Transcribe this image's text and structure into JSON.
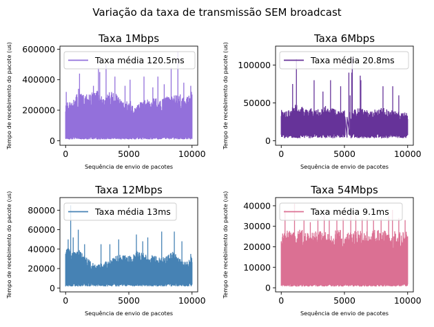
{
  "figure": {
    "title": "Variação da taxa de transmissão SEM broadcast"
  },
  "chart_data": [
    {
      "type": "line",
      "title": "Taxa 1Mbps",
      "xlabel": "Sequência de envio de pacotes",
      "ylabel": "Tempo de recebimento do pacote (us)",
      "xlim": [
        -450,
        10450
      ],
      "ylim": [
        -30000,
        620000
      ],
      "xticks": [
        0,
        5000,
        10000
      ],
      "yticks": [
        0,
        200000,
        400000,
        600000
      ],
      "color": "#9370DB",
      "legend": {
        "label": "Taxa média 120.5ms",
        "position": "upper-left"
      },
      "n_points": 10000,
      "baseline": 20000,
      "band": [
        [
          0,
          230000
        ],
        [
          500,
          230000
        ],
        [
          1000,
          290000
        ],
        [
          1500,
          270000
        ],
        [
          2000,
          290000
        ],
        [
          2500,
          300000
        ],
        [
          3000,
          250000
        ],
        [
          3500,
          300000
        ],
        [
          4000,
          280000
        ],
        [
          4500,
          230000
        ],
        [
          5000,
          250000
        ],
        [
          5500,
          200000
        ],
        [
          6000,
          240000
        ],
        [
          6500,
          250000
        ],
        [
          7000,
          260000
        ],
        [
          7500,
          240000
        ],
        [
          8000,
          270000
        ],
        [
          8500,
          270000
        ],
        [
          9000,
          280000
        ],
        [
          9500,
          250000
        ],
        [
          10000,
          300000
        ]
      ],
      "spikes": [
        [
          50,
          320000
        ],
        [
          1020,
          340000
        ],
        [
          1100,
          440000
        ],
        [
          1400,
          300000
        ],
        [
          2200,
          360000
        ],
        [
          2600,
          480000
        ],
        [
          2700,
          450000
        ],
        [
          3200,
          500000
        ],
        [
          3900,
          420000
        ],
        [
          4700,
          360000
        ],
        [
          5100,
          400000
        ],
        [
          6200,
          420000
        ],
        [
          6900,
          350000
        ],
        [
          7300,
          420000
        ],
        [
          7800,
          370000
        ],
        [
          8350,
          480000
        ],
        [
          8880,
          585000
        ],
        [
          9350,
          380000
        ],
        [
          9900,
          360000
        ]
      ]
    },
    {
      "type": "line",
      "title": "Taxa 6Mbps",
      "xlabel": "Sequência de envio de pacotes",
      "ylabel": "Tempo de recebimento do pacote (us)",
      "xlim": [
        -450,
        10450
      ],
      "ylim": [
        -6000,
        125000
      ],
      "xticks": [
        0,
        5000,
        10000
      ],
      "yticks": [
        0,
        50000,
        100000
      ],
      "color": "#663399",
      "legend": {
        "label": "Taxa média 20.8ms",
        "position": "upper-left"
      },
      "n_points": 10000,
      "baseline": 8000,
      "band": [
        [
          0,
          38000
        ],
        [
          500,
          35000
        ],
        [
          1000,
          45000
        ],
        [
          1500,
          40000
        ],
        [
          2000,
          42000
        ],
        [
          2500,
          40000
        ],
        [
          3000,
          38000
        ],
        [
          3500,
          42000
        ],
        [
          4000,
          40000
        ],
        [
          4500,
          36000
        ],
        [
          5000,
          38000
        ],
        [
          5500,
          34000
        ],
        [
          6000,
          40000
        ],
        [
          6500,
          38000
        ],
        [
          7000,
          36000
        ],
        [
          7500,
          38000
        ],
        [
          8000,
          40000
        ],
        [
          8500,
          38000
        ],
        [
          9000,
          36000
        ],
        [
          9500,
          34000
        ],
        [
          10000,
          36000
        ]
      ],
      "spikes": [
        [
          900,
          75000
        ],
        [
          1200,
          108000
        ],
        [
          2600,
          80000
        ],
        [
          3300,
          65000
        ],
        [
          3900,
          80000
        ],
        [
          4700,
          72000
        ],
        [
          5350,
          90000
        ],
        [
          5450,
          60000
        ],
        [
          5580,
          90000
        ],
        [
          5620,
          110000
        ],
        [
          6250,
          86000
        ],
        [
          6300,
          80000
        ],
        [
          8050,
          72000
        ],
        [
          8820,
          72000
        ],
        [
          9300,
          60000
        ]
      ],
      "gaps": [
        5050,
        5500
      ]
    },
    {
      "type": "line",
      "title": "Taxa 12Mbps",
      "xlabel": "Sequência de envio de pacotes",
      "ylabel": "Tempo de recebimento do pacote (us)",
      "xlim": [
        -450,
        10450
      ],
      "ylim": [
        -4000,
        93000
      ],
      "xticks": [
        0,
        5000,
        10000
      ],
      "yticks": [
        0,
        20000,
        40000,
        60000,
        80000
      ],
      "color": "#4682B4",
      "legend": {
        "label": "Taxa média 13ms",
        "position": "upper-left"
      },
      "n_points": 10000,
      "baseline": 4000,
      "band": [
        [
          0,
          40000
        ],
        [
          500,
          35000
        ],
        [
          1000,
          38000
        ],
        [
          1500,
          30000
        ],
        [
          2000,
          25000
        ],
        [
          2500,
          22000
        ],
        [
          3000,
          24000
        ],
        [
          3500,
          28000
        ],
        [
          4000,
          30000
        ],
        [
          4500,
          32000
        ],
        [
          5000,
          30000
        ],
        [
          5500,
          35000
        ],
        [
          6000,
          36000
        ],
        [
          6500,
          30000
        ],
        [
          7000,
          32000
        ],
        [
          7500,
          28000
        ],
        [
          8000,
          30000
        ],
        [
          8500,
          35000
        ],
        [
          9000,
          28000
        ],
        [
          9500,
          25000
        ],
        [
          10000,
          30000
        ]
      ],
      "spikes": [
        [
          200,
          50000
        ],
        [
          400,
          85000
        ],
        [
          600,
          52000
        ],
        [
          1000,
          60000
        ],
        [
          1500,
          45000
        ],
        [
          2800,
          45000
        ],
        [
          3500,
          45000
        ],
        [
          4200,
          50000
        ],
        [
          5600,
          55000
        ],
        [
          6100,
          48000
        ],
        [
          6500,
          52000
        ],
        [
          7600,
          58000
        ],
        [
          8600,
          58000
        ],
        [
          9200,
          48000
        ],
        [
          9900,
          35000
        ]
      ]
    },
    {
      "type": "line",
      "title": "Taxa 54Mbps",
      "xlabel": "Sequência de envio de pacotes",
      "ylabel": "Tempo de recebimento do pacote (us)",
      "xlim": [
        -450,
        10450
      ],
      "ylim": [
        -2000,
        44000
      ],
      "xticks": [
        0,
        5000,
        10000
      ],
      "yticks": [
        0,
        10000,
        20000,
        30000,
        40000
      ],
      "color": "#DB7093",
      "legend": {
        "label": "Taxa média 9.1ms",
        "position": "upper-left"
      },
      "n_points": 10000,
      "baseline": 1500,
      "band": [
        [
          0,
          25000
        ],
        [
          500,
          26000
        ],
        [
          1000,
          25000
        ],
        [
          1500,
          26000
        ],
        [
          2000,
          25000
        ],
        [
          2500,
          25000
        ],
        [
          3000,
          26000
        ],
        [
          3500,
          25000
        ],
        [
          4000,
          25000
        ],
        [
          4500,
          26000
        ],
        [
          5000,
          25000
        ],
        [
          5500,
          25000
        ],
        [
          6000,
          26000
        ],
        [
          6500,
          25000
        ],
        [
          7000,
          25000
        ],
        [
          7500,
          26000
        ],
        [
          8000,
          25000
        ],
        [
          8500,
          26000
        ],
        [
          9000,
          25000
        ],
        [
          9500,
          25000
        ],
        [
          10000,
          25000
        ]
      ],
      "spikes": [
        [
          300,
          38000
        ],
        [
          1050,
          41000
        ],
        [
          1800,
          33000
        ],
        [
          2300,
          32000
        ],
        [
          2900,
          34000
        ],
        [
          3400,
          35000
        ],
        [
          3800,
          33000
        ],
        [
          4400,
          33000
        ],
        [
          4900,
          34000
        ],
        [
          5500,
          36000
        ],
        [
          5900,
          35000
        ],
        [
          6400,
          34000
        ],
        [
          6800,
          34000
        ],
        [
          7300,
          33000
        ],
        [
          7900,
          34000
        ],
        [
          8500,
          35000
        ],
        [
          8800,
          38000
        ],
        [
          9300,
          34000
        ],
        [
          9800,
          33000
        ]
      ]
    }
  ]
}
